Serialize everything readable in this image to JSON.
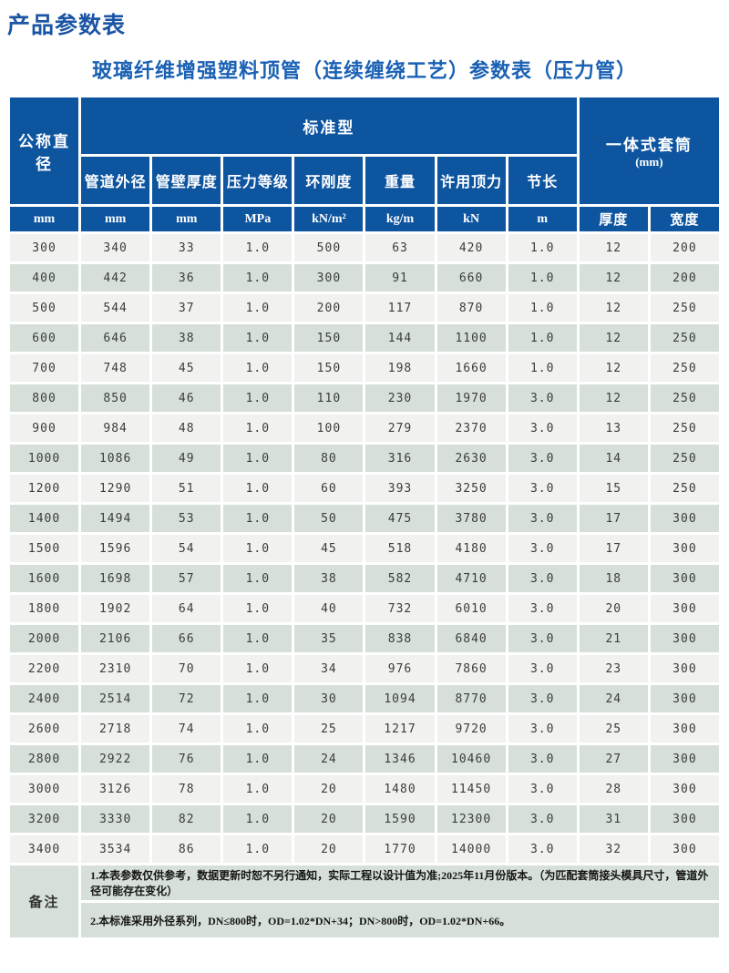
{
  "page": {
    "title": "产品参数表",
    "subtitle": "玻璃纤维增强塑料顶管（连续缠绕工艺）参数表（压力管）"
  },
  "colors": {
    "header_blue": "#0e55a0",
    "row_light": "#f1f1ef",
    "row_green": "#d6e0d8",
    "title_blue": "#1b55a4",
    "subtitle_blue": "#1a61b4"
  },
  "table": {
    "header": {
      "col_nominal_diameter": "公称直径",
      "group_standard": "标准型",
      "group_sleeve_line1": "一体式套筒",
      "group_sleeve_line2": "(mm)",
      "sub_columns": [
        "管道外径",
        "管壁厚度",
        "压力等级",
        "环刚度",
        "重量",
        "许用顶力",
        "节长"
      ],
      "units": [
        "mm",
        "mm",
        "mm",
        "MPa",
        "kN/m²",
        "kg/m",
        "kN",
        "m",
        "厚度",
        "宽度"
      ]
    },
    "rows": [
      [
        "300",
        "340",
        "33",
        "1.0",
        "500",
        "63",
        "420",
        "1.0",
        "12",
        "200"
      ],
      [
        "400",
        "442",
        "36",
        "1.0",
        "300",
        "91",
        "660",
        "1.0",
        "12",
        "200"
      ],
      [
        "500",
        "544",
        "37",
        "1.0",
        "200",
        "117",
        "870",
        "1.0",
        "12",
        "250"
      ],
      [
        "600",
        "646",
        "38",
        "1.0",
        "150",
        "144",
        "1100",
        "1.0",
        "12",
        "250"
      ],
      [
        "700",
        "748",
        "45",
        "1.0",
        "150",
        "198",
        "1660",
        "1.0",
        "12",
        "250"
      ],
      [
        "800",
        "850",
        "46",
        "1.0",
        "110",
        "230",
        "1970",
        "3.0",
        "12",
        "250"
      ],
      [
        "900",
        "984",
        "48",
        "1.0",
        "100",
        "279",
        "2370",
        "3.0",
        "13",
        "250"
      ],
      [
        "1000",
        "1086",
        "49",
        "1.0",
        "80",
        "316",
        "2630",
        "3.0",
        "14",
        "250"
      ],
      [
        "1200",
        "1290",
        "51",
        "1.0",
        "60",
        "393",
        "3250",
        "3.0",
        "15",
        "250"
      ],
      [
        "1400",
        "1494",
        "53",
        "1.0",
        "50",
        "475",
        "3780",
        "3.0",
        "17",
        "300"
      ],
      [
        "1500",
        "1596",
        "54",
        "1.0",
        "45",
        "518",
        "4180",
        "3.0",
        "17",
        "300"
      ],
      [
        "1600",
        "1698",
        "57",
        "1.0",
        "38",
        "582",
        "4710",
        "3.0",
        "18",
        "300"
      ],
      [
        "1800",
        "1902",
        "64",
        "1.0",
        "40",
        "732",
        "6010",
        "3.0",
        "20",
        "300"
      ],
      [
        "2000",
        "2106",
        "66",
        "1.0",
        "35",
        "838",
        "6840",
        "3.0",
        "21",
        "300"
      ],
      [
        "2200",
        "2310",
        "70",
        "1.0",
        "34",
        "976",
        "7860",
        "3.0",
        "23",
        "300"
      ],
      [
        "2400",
        "2514",
        "72",
        "1.0",
        "30",
        "1094",
        "8770",
        "3.0",
        "24",
        "300"
      ],
      [
        "2600",
        "2718",
        "74",
        "1.0",
        "25",
        "1217",
        "9720",
        "3.0",
        "25",
        "300"
      ],
      [
        "2800",
        "2922",
        "76",
        "1.0",
        "24",
        "1346",
        "10460",
        "3.0",
        "27",
        "300"
      ],
      [
        "3000",
        "3126",
        "78",
        "1.0",
        "20",
        "1480",
        "11450",
        "3.0",
        "28",
        "300"
      ],
      [
        "3200",
        "3330",
        "82",
        "1.0",
        "20",
        "1590",
        "12300",
        "3.0",
        "31",
        "300"
      ],
      [
        "3400",
        "3534",
        "86",
        "1.0",
        "20",
        "1770",
        "14000",
        "3.0",
        "32",
        "300"
      ]
    ],
    "notes": {
      "label": "备注",
      "items": [
        "1.本表参数仅供参考，数据更新时恕不另行通知，实际工程以设计值为准;2025年11月份版本。（为匹配套筒接头模具尺寸，管道外径可能存在变化）",
        "2.本标准采用外径系列，DN≤800时，OD=1.02*DN+34；DN>800时，OD=1.02*DN+66。"
      ]
    }
  }
}
